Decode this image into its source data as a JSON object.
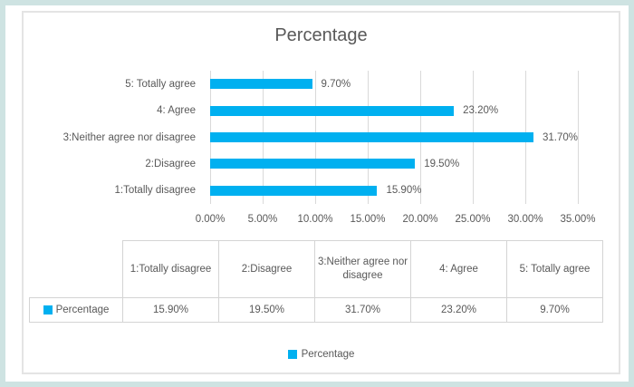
{
  "chart": {
    "title": "Percentage",
    "bar_color": "#00B0F0",
    "x_max": 35,
    "rows": [
      {
        "label": "5: Totally agree",
        "value": 9.7,
        "value_label": "9.70%"
      },
      {
        "label": "4: Agree",
        "value": 23.2,
        "value_label": "23.20%"
      },
      {
        "label": "3:Neither agree nor disagree",
        "value": 31.7,
        "value_label": "31.70%"
      },
      {
        "label": "2:Disagree",
        "value": 19.5,
        "value_label": "19.50%"
      },
      {
        "label": "1:Totally disagree",
        "value": 15.9,
        "value_label": "15.90%"
      }
    ],
    "x_ticks": [
      "0.00%",
      "5.00%",
      "10.00%",
      "15.00%",
      "20.00%",
      "25.00%",
      "30.00%",
      "35.00%"
    ]
  },
  "table": {
    "row_header": "Percentage",
    "columns": [
      "1:Totally disagree",
      "2:Disagree",
      "3:Neither agree nor disagree",
      "4: Agree",
      "5: Totally agree"
    ],
    "values": [
      "15.90%",
      "19.50%",
      "31.70%",
      "23.20%",
      "9.70%"
    ]
  },
  "legend": {
    "label": "Percentage"
  },
  "colors": {
    "accent_blue": "#00B0F0",
    "frame_border": "#cee3e2",
    "gridline": "#d9d9d9",
    "text_gray": "#595959"
  },
  "chart_data": {
    "type": "bar",
    "orientation": "horizontal",
    "title": "Percentage",
    "series_name": "Percentage",
    "categories": [
      "1:Totally disagree",
      "2:Disagree",
      "3:Neither agree nor disagree",
      "4: Agree",
      "5: Totally agree"
    ],
    "values": [
      15.9,
      19.5,
      31.7,
      23.2,
      9.7
    ],
    "data_labels": [
      "15.90%",
      "19.50%",
      "31.70%",
      "23.20%",
      "9.70%"
    ],
    "category_order_on_plot_top_to_bottom": [
      "5: Totally agree",
      "4: Agree",
      "3:Neither agree nor disagree",
      "2:Disagree",
      "1:Totally disagree"
    ],
    "xlabel": "",
    "ylabel": "",
    "xlim": [
      0,
      35
    ],
    "x_tick_labels": [
      "0.00%",
      "5.00%",
      "10.00%",
      "15.00%",
      "20.00%",
      "25.00%",
      "30.00%",
      "35.00%"
    ],
    "grid": true,
    "bar_color": "#00B0F0",
    "legend_position": "bottom",
    "data_table_shown": true
  }
}
